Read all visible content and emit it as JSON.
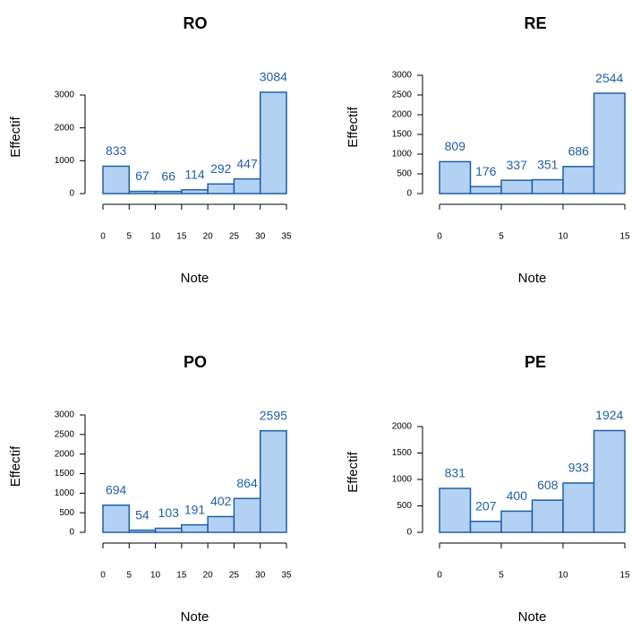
{
  "chart_data": [
    {
      "type": "histogram",
      "title": "RO",
      "x_label": "Note",
      "y_label": "Effectif",
      "bins": [
        0,
        5,
        10,
        15,
        20,
        25,
        30,
        35
      ],
      "values": [
        833,
        67,
        66,
        114,
        292,
        447,
        3084
      ],
      "xlim": [
        0,
        35
      ],
      "xticks": [
        0,
        5,
        10,
        15,
        20,
        25,
        30,
        35
      ],
      "ylim": [
        0,
        3000
      ],
      "yticks": [
        0,
        1000,
        2000,
        3000
      ],
      "color": "#b3d1f3",
      "edge_color": "#1f5fa8"
    },
    {
      "type": "histogram",
      "title": "RE",
      "x_label": "Note",
      "y_label": "Effectif",
      "bins": [
        0,
        2.5,
        5,
        7.5,
        10,
        12.5,
        15
      ],
      "values": [
        809,
        176,
        337,
        351,
        686,
        2544
      ],
      "xlim": [
        0,
        15
      ],
      "xticks": [
        0,
        5,
        10,
        15
      ],
      "ylim": [
        0,
        3000
      ],
      "yticks": [
        0,
        500,
        1000,
        1500,
        2000,
        2500,
        3000
      ],
      "color": "#b3d1f3",
      "edge_color": "#1f5fa8"
    },
    {
      "type": "histogram",
      "title": "PO",
      "x_label": "Note",
      "y_label": "Effectif",
      "bins": [
        0,
        5,
        10,
        15,
        20,
        25,
        30,
        35
      ],
      "values": [
        694,
        54,
        103,
        191,
        402,
        864,
        2595
      ],
      "xlim": [
        0,
        35
      ],
      "xticks": [
        0,
        5,
        10,
        15,
        20,
        25,
        30,
        35
      ],
      "ylim": [
        0,
        3000
      ],
      "yticks": [
        0,
        500,
        1000,
        1500,
        2000,
        2500,
        3000
      ],
      "color": "#b3d1f3",
      "edge_color": "#1f5fa8"
    },
    {
      "type": "histogram",
      "title": "PE",
      "x_label": "Note",
      "y_label": "Effectif",
      "bins": [
        0,
        2.5,
        5,
        7.5,
        10,
        12.5,
        15
      ],
      "values": [
        831,
        207,
        400,
        608,
        933,
        1924
      ],
      "xlim": [
        0,
        15
      ],
      "xticks": [
        0,
        5,
        10,
        15
      ],
      "ylim": [
        0,
        2000
      ],
      "yticks": [
        0,
        500,
        1000,
        1500,
        2000
      ],
      "color": "#b3d1f3",
      "edge_color": "#1f5fa8"
    }
  ]
}
